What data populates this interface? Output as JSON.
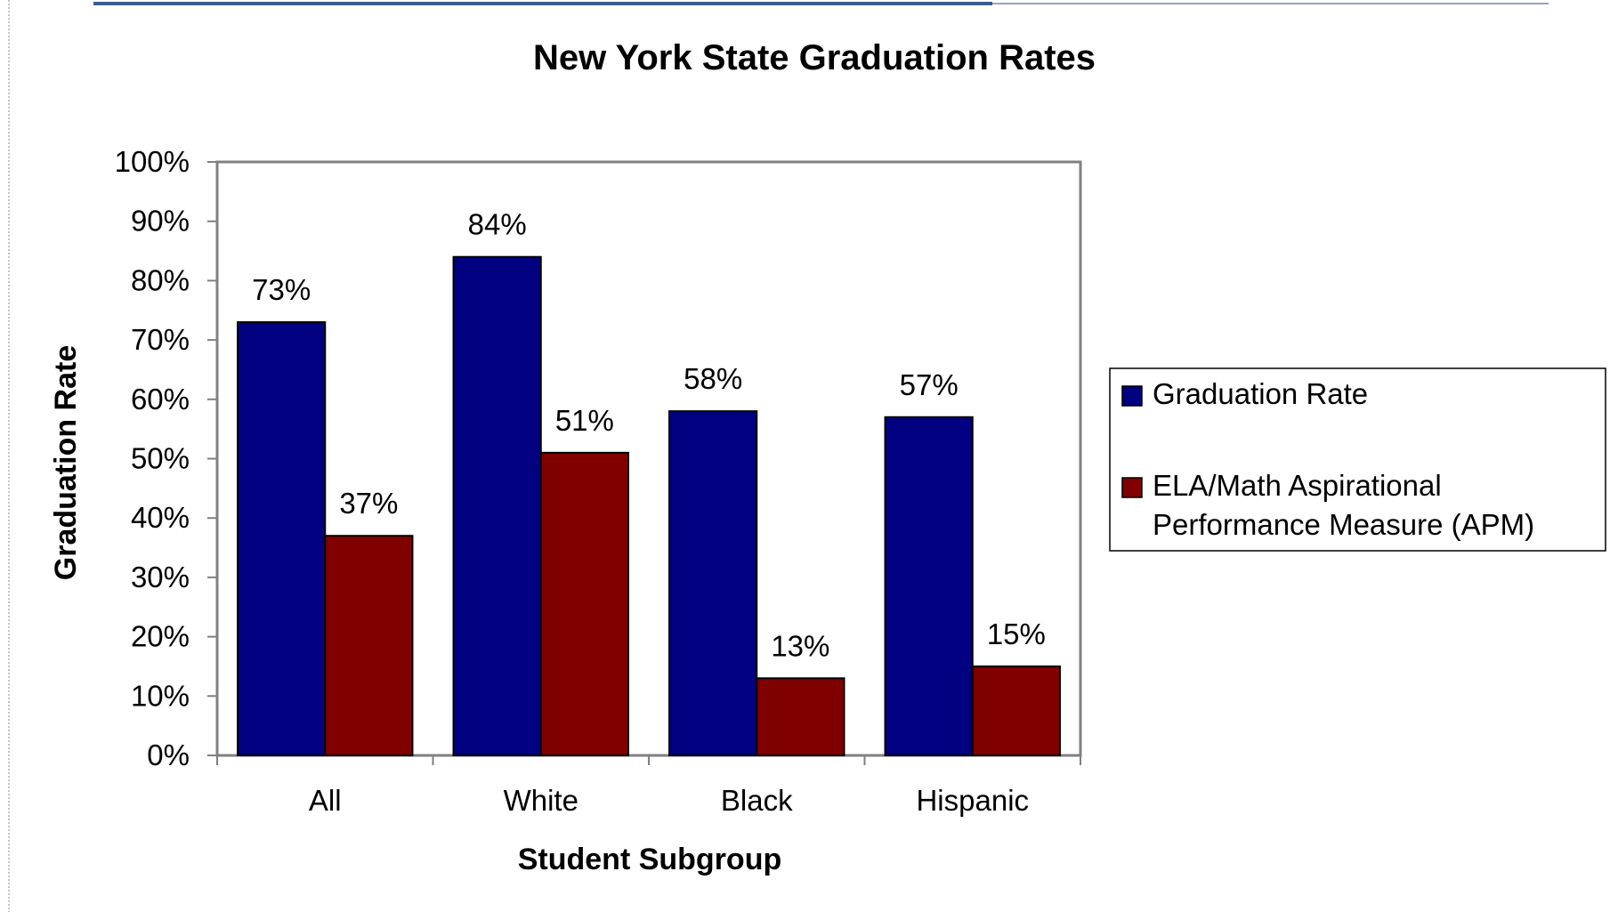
{
  "chart_data": {
    "type": "bar",
    "title": "New York State Graduation Rates",
    "xlabel": "Student Subgroup",
    "ylabel": "Graduation Rate",
    "categories": [
      "All",
      "White",
      "Black",
      "Hispanic"
    ],
    "series": [
      {
        "name": "Graduation Rate",
        "color": "#000080",
        "values": [
          73,
          84,
          58,
          57
        ],
        "labels": [
          "73%",
          "84%",
          "58%",
          "57%"
        ]
      },
      {
        "name": "ELA/Math Aspirational Performance Measure (APM)",
        "name_lines": [
          "ELA/Math Aspirational",
          "Performance Measure (APM)"
        ],
        "color": "#800000",
        "values": [
          37,
          51,
          13,
          15
        ],
        "labels": [
          "37%",
          "51%",
          "13%",
          "15%"
        ]
      }
    ],
    "ylim": [
      0,
      100
    ],
    "yticks": [
      0,
      10,
      20,
      30,
      40,
      50,
      60,
      70,
      80,
      90,
      100
    ],
    "ytick_labels": [
      "0%",
      "10%",
      "20%",
      "30%",
      "40%",
      "50%",
      "60%",
      "70%",
      "80%",
      "90%",
      "100%"
    ],
    "grid": false,
    "legend_position": "right"
  }
}
